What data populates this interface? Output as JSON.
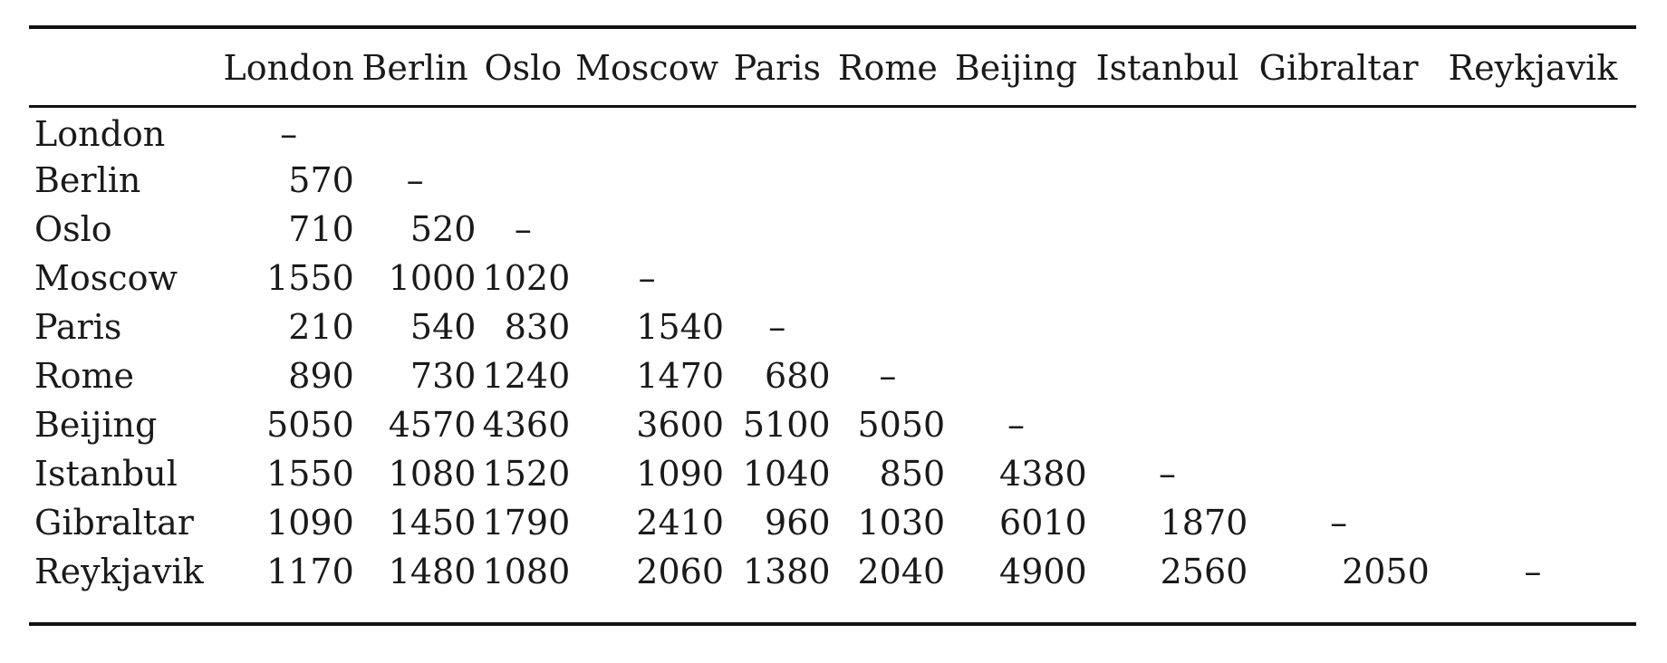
{
  "table": {
    "columns": [
      "London",
      "Berlin",
      "Oslo",
      "Moscow",
      "Paris",
      "Rome",
      "Beijing",
      "Istanbul",
      "Gibraltar",
      "Reykjavik"
    ],
    "rows": [
      {
        "label": "London",
        "cells": [
          "–"
        ]
      },
      {
        "label": "Berlin",
        "cells": [
          "570",
          "–"
        ]
      },
      {
        "label": "Oslo",
        "cells": [
          "710",
          "520",
          "–"
        ]
      },
      {
        "label": "Moscow",
        "cells": [
          "1550",
          "1000",
          "1020",
          "–"
        ]
      },
      {
        "label": "Paris",
        "cells": [
          "210",
          "540",
          "830",
          "1540",
          "–"
        ]
      },
      {
        "label": "Rome",
        "cells": [
          "890",
          "730",
          "1240",
          "1470",
          "680",
          "–"
        ]
      },
      {
        "label": "Beijing",
        "cells": [
          "5050",
          "4570",
          "4360",
          "3600",
          "5100",
          "5050",
          "–"
        ]
      },
      {
        "label": "Istanbul",
        "cells": [
          "1550",
          "1080",
          "1520",
          "1090",
          "1040",
          "850",
          "4380",
          "–"
        ]
      },
      {
        "label": "Gibraltar",
        "cells": [
          "1090",
          "1450",
          "1790",
          "2410",
          "960",
          "1030",
          "6010",
          "1870",
          "–"
        ]
      },
      {
        "label": "Reykjavik",
        "cells": [
          "1170",
          "1480",
          "1080",
          "2060",
          "1380",
          "2040",
          "4900",
          "2560",
          "2050",
          "–"
        ]
      }
    ]
  }
}
